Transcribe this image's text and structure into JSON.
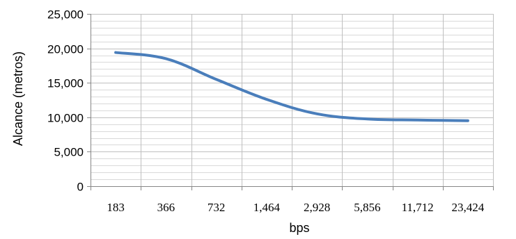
{
  "chart_data": {
    "type": "line",
    "categories": [
      "183",
      "366",
      "732",
      "1,464",
      "2,928",
      "5,856",
      "11,712",
      "23,424"
    ],
    "series": [
      {
        "values": [
          19400,
          18500,
          15500,
          12600,
          10500,
          9750,
          9600,
          9500
        ]
      }
    ],
    "xlabel": "bps",
    "ylabel": "Alcance (metros)",
    "ylim": [
      0,
      25000
    ],
    "y_major_step": 5000,
    "y_minor_step": 1000,
    "y_tick_labels": [
      "0",
      "5,000",
      "10,000",
      "15,000",
      "20,000",
      "25,000"
    ],
    "grid": true,
    "line_color": "#4a7ebb"
  }
}
